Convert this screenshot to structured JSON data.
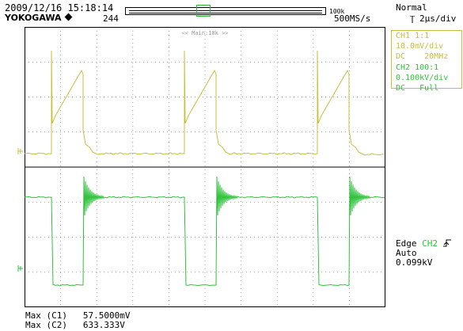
{
  "header": {
    "datetime": "2009/12/16 15:18:14",
    "brand": "YOKOGAWA",
    "record_count": "244",
    "record_size": "100k",
    "trigger_mode": "Normal",
    "sample_rate": "500MS/s",
    "timebase": "2μs/div",
    "zoom_label": "<< Main:10k >>"
  },
  "channels": {
    "ch1": {
      "name": "CH1 1:1",
      "scale": "10.0mV/div",
      "coupling": "DC",
      "bandwidth": "20MHz",
      "color": "#c4c03c"
    },
    "ch2": {
      "name": "CH2 100:1",
      "scale": "0.100kV/div",
      "coupling": "DC",
      "bandwidth": "Full",
      "color": "#2fc23b"
    }
  },
  "trigger": {
    "type": "Edge",
    "source": "CH2",
    "mode": "Auto",
    "level": "0.099kV"
  },
  "measurements": [
    {
      "label": "Max (C1)",
      "value": "57.5000mV"
    },
    {
      "label": "Max (C2)",
      "value": "633.333V"
    }
  ],
  "colors": {
    "ch1": "#c4c03c",
    "ch2": "#2fc23b",
    "grid": "#888888"
  }
}
